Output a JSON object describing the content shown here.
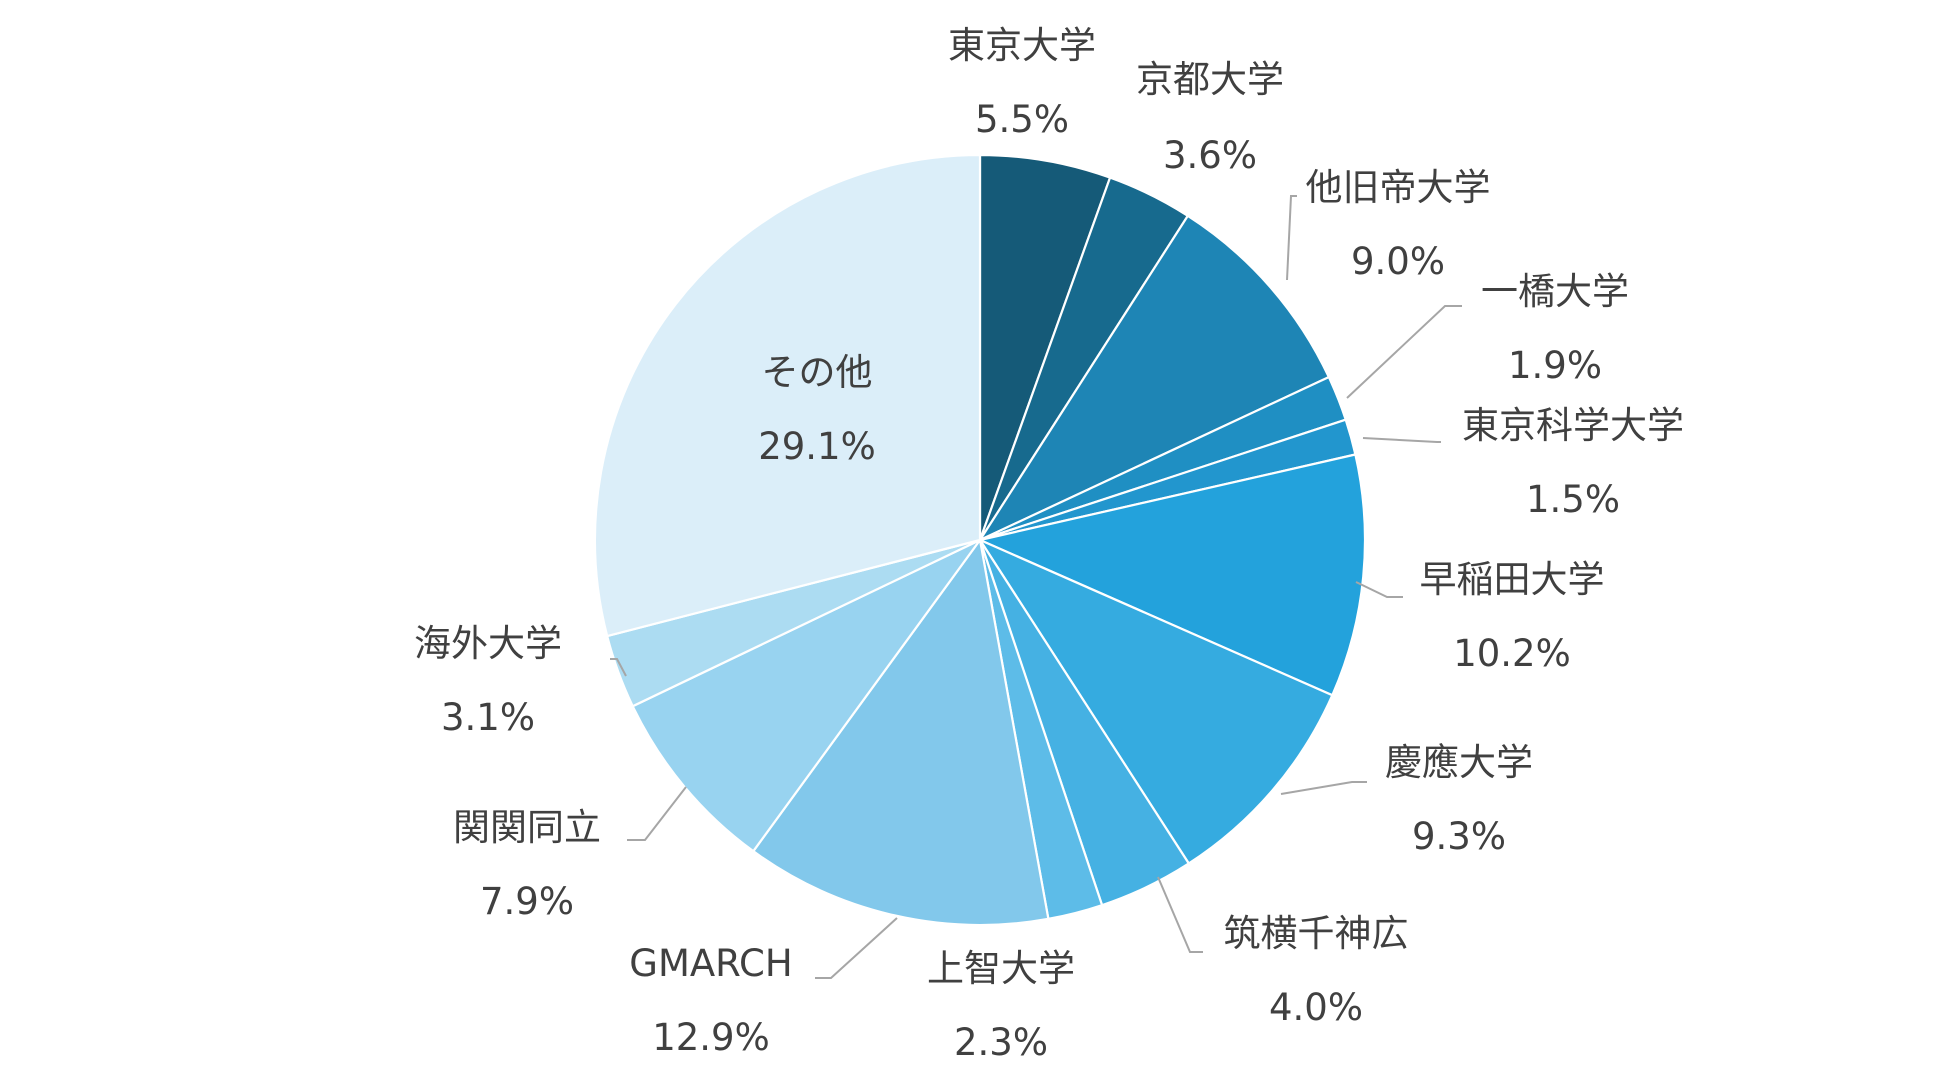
{
  "chart_data": {
    "type": "pie",
    "title": "",
    "start_angle": "12 o'clock",
    "direction": "clockwise",
    "slices": [
      {
        "label": "東京大学",
        "value": 5.5,
        "value_label": "5.5%",
        "color": "#155a78"
      },
      {
        "label": "京都大学",
        "value": 3.6,
        "value_label": "3.6%",
        "color": "#176a8e"
      },
      {
        "label": "他旧帝大学",
        "value": 9.0,
        "value_label": "9.0%",
        "color": "#1e85b5"
      },
      {
        "label": "一橋大学",
        "value": 1.9,
        "value_label": "1.9%",
        "color": "#1f8fc3"
      },
      {
        "label": "東京科学大学",
        "value": 1.5,
        "value_label": "1.5%",
        "color": "#2296ce"
      },
      {
        "label": "早稲田大学",
        "value": 10.2,
        "value_label": "10.2%",
        "color": "#23a2dc"
      },
      {
        "label": "慶應大学",
        "value": 9.3,
        "value_label": "9.3%",
        "color": "#35abe0"
      },
      {
        "label": "筑横千神広",
        "value": 4.0,
        "value_label": "4.0%",
        "color": "#45b1e3"
      },
      {
        "label": "上智大学",
        "value": 2.3,
        "value_label": "2.3%",
        "color": "#5dbce8"
      },
      {
        "label": "GMARCH",
        "value": 12.9,
        "value_label": "12.9%",
        "color": "#82c8eb"
      },
      {
        "label": "関関同立",
        "value": 7.9,
        "value_label": "7.9%",
        "color": "#98d3f0"
      },
      {
        "label": "海外大学",
        "value": 3.1,
        "value_label": "3.1%",
        "color": "#acdcf2"
      },
      {
        "label": "その他",
        "value": 29.1,
        "value_label": "29.1%",
        "color": "#dbeef9"
      }
    ]
  }
}
